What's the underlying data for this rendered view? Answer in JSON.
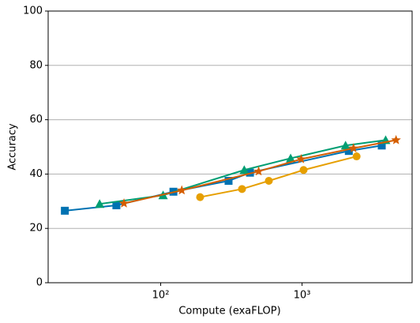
{
  "chart_data": {
    "type": "line",
    "x_label": "Compute (exaFLOP)",
    "y_label": "Accuracy",
    "xlog": true,
    "xlim": [
      16,
      6000
    ],
    "ylim": [
      0,
      100
    ],
    "xticks": [
      {
        "value": 100,
        "label": "10²"
      },
      {
        "value": 1000,
        "label": "10³"
      }
    ],
    "yticks": [
      0,
      20,
      40,
      60,
      80,
      100
    ],
    "grid": true,
    "series": [
      {
        "color": "#0072b2",
        "marker": "square",
        "x": [
          21,
          48.6,
          123,
          302,
          428,
          2140,
          3660
        ],
        "values": [
          26.5,
          28.5,
          33.5,
          37.5,
          40.5,
          48.5,
          50.5
        ]
      },
      {
        "color": "#009e73",
        "marker": "triangle",
        "x": [
          37,
          104,
          390,
          830,
          2030,
          3900
        ],
        "values": [
          29,
          32.2,
          41.5,
          45.8,
          50.5,
          52.5
        ]
      },
      {
        "color": "#e69f00",
        "marker": "circle",
        "x": [
          190,
          376,
          582,
          1025,
          2430
        ],
        "values": [
          31.5,
          34.5,
          37.5,
          41.5,
          46.5
        ]
      },
      {
        "color": "#d55e00",
        "marker": "star",
        "x": [
          55,
          141,
          493,
          985,
          2310,
          4620
        ],
        "values": [
          29.2,
          34,
          41,
          45.5,
          49.5,
          52.5
        ]
      }
    ]
  }
}
